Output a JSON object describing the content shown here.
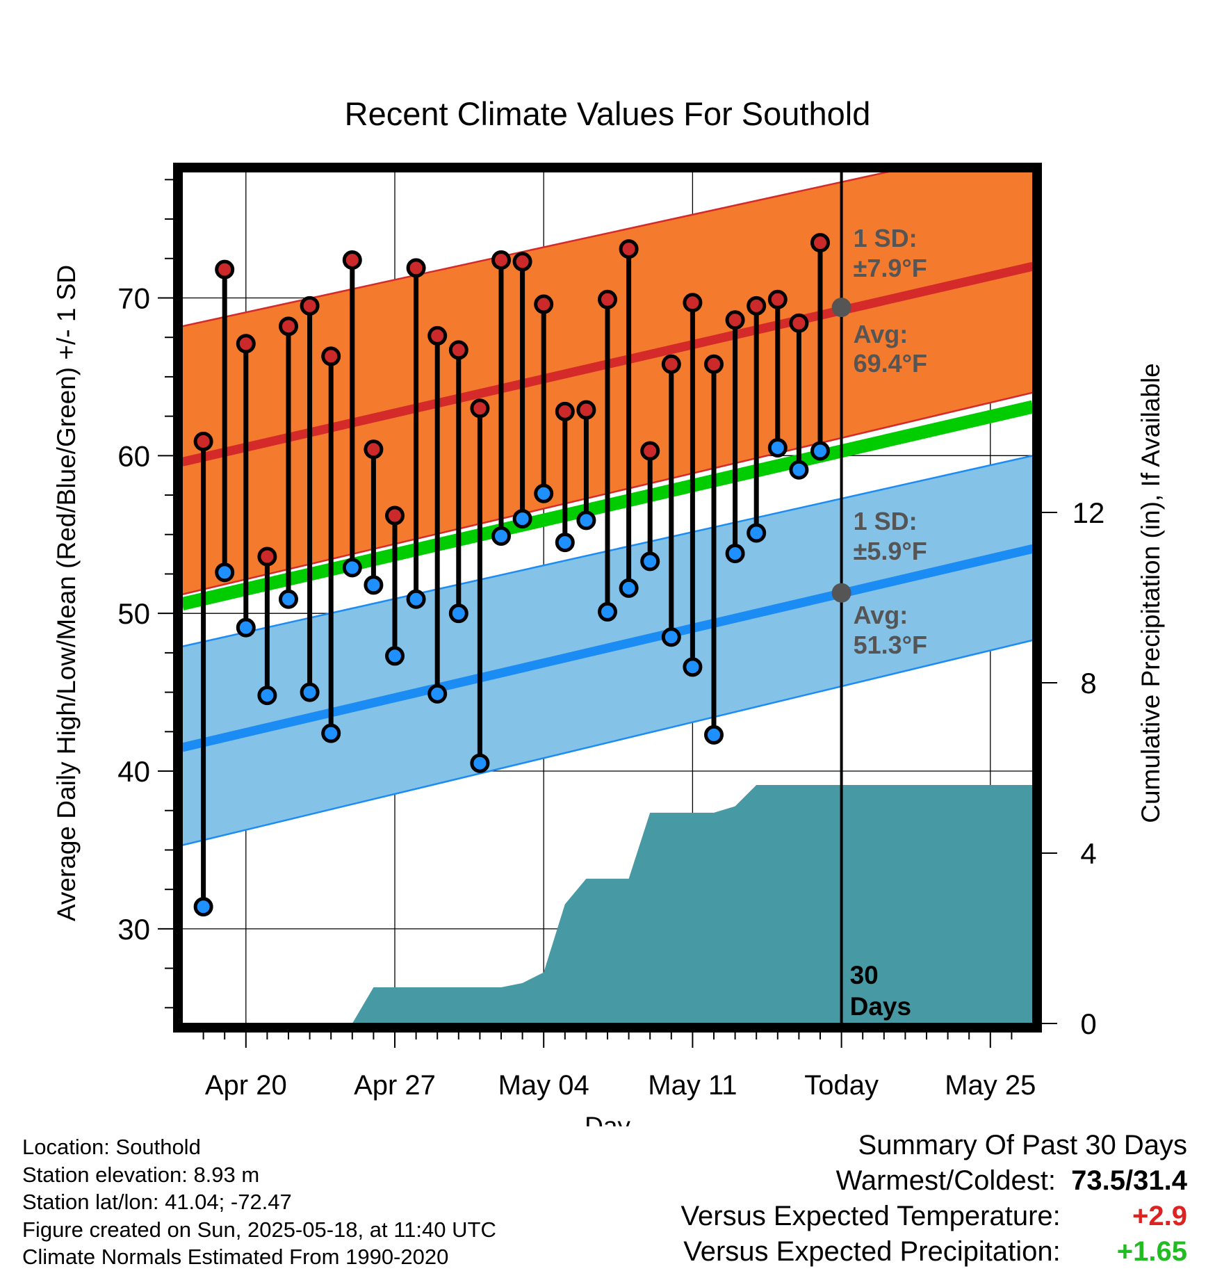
{
  "chart_data": {
    "type": "line",
    "title": "Recent Climate Values For Southold",
    "xlabel": "Day",
    "ylabel": "Average Daily High/Low/Mean (Red/Blue/Green) +/- 1 SD",
    "y2label": "Cumulative Precipitation (in), If Available",
    "x_tick_labels": [
      "Apr 20",
      "Apr 27",
      "May 04",
      "May 11",
      "Today",
      "May 25"
    ],
    "x_tick_days": [
      2,
      9,
      16,
      23,
      30,
      37
    ],
    "xlim_days": [
      -1,
      39
    ],
    "ylim": [
      24,
      78
    ],
    "y_ticks": [
      30,
      40,
      50,
      60,
      70
    ],
    "y2lim": [
      0,
      20
    ],
    "y2_ticks": [
      0,
      4,
      8,
      12
    ],
    "grid": true,
    "today_day": 30,
    "today_label": "30\nDays",
    "days": [
      0,
      1,
      2,
      3,
      4,
      5,
      6,
      7,
      8,
      9,
      10,
      11,
      12,
      13,
      14,
      15,
      16,
      17,
      18,
      19,
      20,
      21,
      22,
      23,
      24,
      25,
      26,
      27,
      28,
      29
    ],
    "daily_high": [
      60.9,
      71.8,
      67.1,
      53.6,
      68.2,
      69.5,
      66.3,
      72.4,
      60.4,
      56.2,
      71.9,
      67.6,
      66.7,
      63.0,
      72.4,
      72.3,
      69.6,
      62.8,
      62.9,
      69.9,
      73.1,
      60.3,
      65.8,
      69.7,
      65.8,
      68.6,
      69.5,
      69.9,
      68.4,
      73.5
    ],
    "daily_low": [
      31.4,
      52.6,
      49.1,
      44.8,
      50.9,
      45.0,
      42.4,
      52.9,
      51.8,
      47.3,
      50.9,
      44.9,
      50.0,
      40.5,
      54.9,
      56.0,
      57.6,
      54.5,
      55.9,
      50.1,
      51.6,
      53.3,
      48.5,
      46.6,
      42.3,
      53.8,
      55.1,
      60.5,
      59.1,
      60.3
    ],
    "normal_high": {
      "day_range": [
        -1,
        39
      ],
      "values": [
        59.6,
        72.0
      ]
    },
    "normal_high_sd": {
      "upper": [
        68.2,
        80.0
      ],
      "lower": [
        51.2,
        64.0
      ]
    },
    "normal_mean": {
      "day_range": [
        -1,
        39
      ],
      "values": [
        50.6,
        63.1
      ]
    },
    "normal_low": {
      "day_range": [
        -1,
        39
      ],
      "values": [
        41.5,
        54.1
      ]
    },
    "normal_low_sd": {
      "upper": [
        47.9,
        60.0
      ],
      "lower": [
        35.3,
        48.3
      ]
    },
    "cumulative_precip": {
      "days": [
        7,
        8,
        9,
        14,
        15,
        16,
        17,
        18,
        20,
        21,
        24,
        25,
        26,
        39
      ],
      "values": [
        0,
        0.85,
        0.85,
        0.85,
        0.95,
        1.2,
        2.8,
        3.4,
        3.4,
        4.95,
        4.95,
        5.1,
        5.6,
        5.6
      ]
    },
    "annotations": {
      "high_sd_label": "1 SD:",
      "high_sd_value": "±7.9°F",
      "high_avg_label": "Avg:",
      "high_avg_value": "69.4°F",
      "high_avg": 69.4,
      "low_sd_label": "1 SD:",
      "low_sd_value": "±5.9°F",
      "low_avg_label": "Avg:",
      "low_avg_value": "51.3°F",
      "low_avg": 51.3
    },
    "colors": {
      "high_band": "#f47a2e",
      "high_line": "#d42a2a",
      "mean_line": "#00cc00",
      "low_band": "#85c2e8",
      "low_line": "#1c8cf5",
      "precip": "#479aa3",
      "high_dot": "#cc2a2a",
      "low_dot": "#1e90ff",
      "annotation_text": "#555555"
    }
  },
  "info": {
    "location": "Location: Southold",
    "elevation": "Station elevation: 8.93 m",
    "latlon": "Station lat/lon: 41.04; -72.47",
    "created": "Figure created on Sun, 2025-05-18, at 11:40 UTC",
    "normals": "Climate Normals Estimated From 1990-2020"
  },
  "summary": {
    "title": "Summary Of Past 30 Days",
    "warm_cold_label": "Warmest/Coldest:",
    "warm_cold_value": "73.5/31.4",
    "temp_label": "Versus Expected Temperature:",
    "temp_value": "+2.9",
    "temp_color": "#dd2222",
    "precip_label": "Versus Expected Precipitation:",
    "precip_value": "+1.65",
    "precip_color": "#22bb22"
  }
}
